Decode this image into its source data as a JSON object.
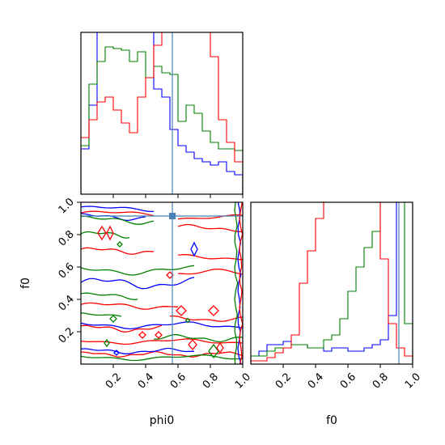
{
  "chart_data": {
    "type": "corner",
    "parameters": [
      "phi0",
      "f0"
    ],
    "xlabels": [
      "phi0",
      "f0"
    ],
    "ylabels": [
      "",
      "f0"
    ],
    "ticks": [
      "0.2",
      "0.4",
      "0.6",
      "0.8",
      "1.0"
    ],
    "tick_values": [
      0.2,
      0.4,
      0.6,
      0.8,
      1.0
    ],
    "xlim": [
      0,
      1
    ],
    "ylim": [
      0,
      1
    ],
    "grid": false,
    "truths": {
      "phi0": 0.565,
      "f0": 0.915
    },
    "colors": {
      "blue": "#0000ff",
      "green": "#008000",
      "red": "#ff0000",
      "truth": "#4682b4"
    },
    "hist_phi0": {
      "bin_edges": [
        0,
        0.05,
        0.1,
        0.15,
        0.2,
        0.25,
        0.3,
        0.35,
        0.4,
        0.45,
        0.5,
        0.55,
        0.6,
        0.65,
        0.7,
        0.75,
        0.8,
        0.85,
        0.9,
        0.95,
        1.0
      ],
      "series": [
        {
          "color": "blue",
          "values": [
            0.28,
            0.55,
            1.3,
            1.3,
            1.3,
            1.3,
            1.3,
            1.3,
            1.3,
            0.65,
            0.6,
            0.4,
            0.3,
            0.26,
            0.22,
            0.2,
            0.18,
            0.2,
            0.14,
            0.12
          ]
        },
        {
          "color": "green",
          "values": [
            0.3,
            0.68,
            0.82,
            0.91,
            0.9,
            0.89,
            0.82,
            0.88,
            0.72,
            0.79,
            0.75,
            0.74,
            0.45,
            0.55,
            0.5,
            0.39,
            0.32,
            0.28,
            0.28,
            0.27
          ]
        },
        {
          "color": "red",
          "values": [
            0.35,
            0.46,
            0.57,
            0.6,
            0.52,
            0.44,
            0.38,
            0.6,
            0.72,
            0.92,
            1.3,
            1.3,
            1.3,
            1.3,
            1.3,
            1.3,
            0.85,
            0.46,
            0.32,
            0.2
          ]
        }
      ]
    },
    "hist_f0": {
      "bin_edges": [
        0,
        0.05,
        0.1,
        0.15,
        0.2,
        0.25,
        0.3,
        0.35,
        0.4,
        0.45,
        0.5,
        0.55,
        0.6,
        0.65,
        0.7,
        0.75,
        0.8,
        0.85,
        0.9,
        0.95,
        1.0
      ],
      "series": [
        {
          "color": "blue",
          "values": [
            0.05,
            0.08,
            0.12,
            0.12,
            0.14,
            0.12,
            0.12,
            0.1,
            0.1,
            0.08,
            0.1,
            0.1,
            0.08,
            0.08,
            0.1,
            0.12,
            0.15,
            0.3,
            1.3,
            1.3
          ]
        },
        {
          "color": "green",
          "values": [
            0.05,
            0.05,
            0.08,
            0.1,
            0.1,
            0.12,
            0.12,
            0.1,
            0.1,
            0.15,
            0.18,
            0.28,
            0.45,
            0.6,
            0.72,
            0.82,
            1.3,
            1.3,
            1.1,
            0.25
          ]
        },
        {
          "color": "red",
          "values": [
            0.02,
            0.02,
            0.04,
            0.07,
            0.1,
            0.18,
            0.5,
            0.7,
            0.9,
            1.3,
            1.3,
            1.3,
            1.3,
            1.3,
            1.3,
            1.3,
            0.65,
            0.25,
            0.1,
            0.05
          ]
        }
      ]
    }
  }
}
